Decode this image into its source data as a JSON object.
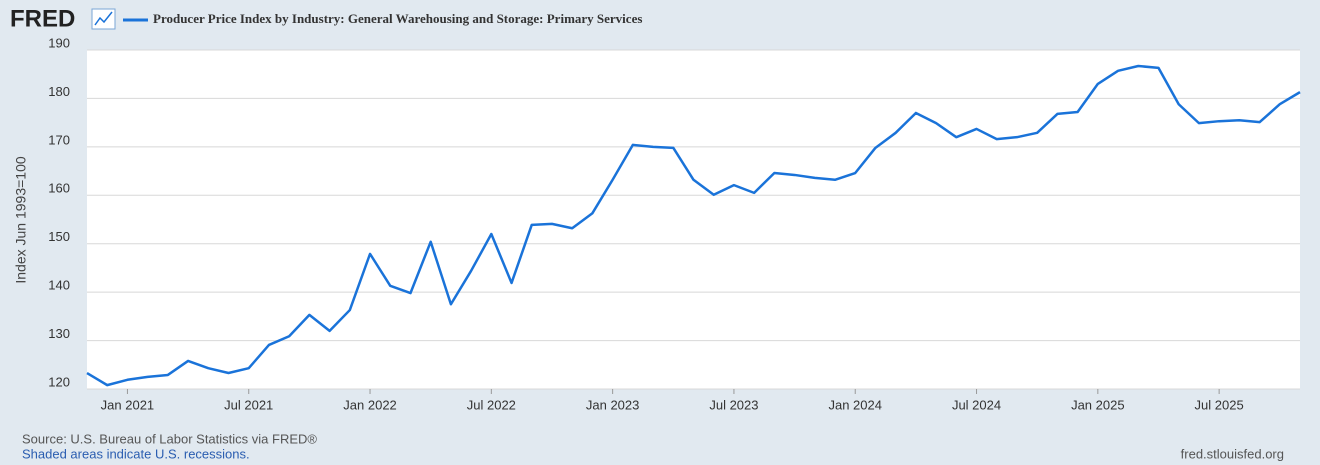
{
  "chart_data": {
    "type": "line",
    "logo": "FRED",
    "ylabel": "Index Jun 1993=100",
    "source": "Source: U.S. Bureau of Labor Statistics via FRED®",
    "note": "Shaded areas indicate U.S. recessions.",
    "credit": "fred.stlouisfed.org",
    "x": [
      "2020-11",
      "2020-12",
      "2021-01",
      "2021-02",
      "2021-03",
      "2021-04",
      "2021-05",
      "2021-06",
      "2021-07",
      "2021-08",
      "2021-09",
      "2021-10",
      "2021-11",
      "2021-12",
      "2022-01",
      "2022-02",
      "2022-03",
      "2022-04",
      "2022-05",
      "2022-06",
      "2022-07",
      "2022-08",
      "2022-09",
      "2022-10",
      "2022-11",
      "2022-12",
      "2023-01",
      "2023-02",
      "2023-03",
      "2023-04",
      "2023-05",
      "2023-06",
      "2023-07",
      "2023-08",
      "2023-09",
      "2023-10",
      "2023-11",
      "2023-12",
      "2024-01",
      "2024-02",
      "2024-03",
      "2024-04",
      "2024-05",
      "2024-06",
      "2024-07",
      "2024-08",
      "2024-09",
      "2024-10",
      "2024-11",
      "2024-12",
      "2025-01",
      "2025-02",
      "2025-03",
      "2025-04",
      "2025-05",
      "2025-06",
      "2025-07",
      "2025-08",
      "2025-09",
      "2025-10",
      "2025-11"
    ],
    "series": [
      {
        "name": "Producer Price Index by Industry: General Warehousing and Storage: Primary Services",
        "color": "#1a73d9",
        "values": [
          123.3,
          120.8,
          121.9,
          122.5,
          122.9,
          125.8,
          124.3,
          123.3,
          124.3,
          129.1,
          130.9,
          135.3,
          132.0,
          136.3,
          147.9,
          141.3,
          139.8,
          150.4,
          137.5,
          144.4,
          152.0,
          141.9,
          153.9,
          154.1,
          153.2,
          156.3,
          163.2,
          170.4,
          170.0,
          169.8,
          163.2,
          160.1,
          162.1,
          160.5,
          164.6,
          164.2,
          163.6,
          163.2,
          164.6,
          169.8,
          172.9,
          177.0,
          174.9,
          172.0,
          173.7,
          171.6,
          172.0,
          172.9,
          176.8,
          177.2,
          183.0,
          185.7,
          186.7,
          186.3,
          178.8,
          174.9,
          175.3,
          175.5,
          175.1,
          178.8,
          181.3
        ]
      }
    ],
    "ylim": [
      120,
      190
    ],
    "yticks": [
      120,
      130,
      140,
      150,
      160,
      170,
      180,
      190
    ],
    "xticks": [
      {
        "value": "2021-01",
        "label": "Jan 2021"
      },
      {
        "value": "2021-07",
        "label": "Jul 2021"
      },
      {
        "value": "2022-01",
        "label": "Jan 2022"
      },
      {
        "value": "2022-07",
        "label": "Jul 2022"
      },
      {
        "value": "2023-01",
        "label": "Jan 2023"
      },
      {
        "value": "2023-07",
        "label": "Jul 2023"
      },
      {
        "value": "2024-01",
        "label": "Jan 2024"
      },
      {
        "value": "2024-07",
        "label": "Jul 2024"
      },
      {
        "value": "2025-01",
        "label": "Jan 2025"
      },
      {
        "value": "2025-07",
        "label": "Jul 2025"
      }
    ],
    "grid": true
  }
}
